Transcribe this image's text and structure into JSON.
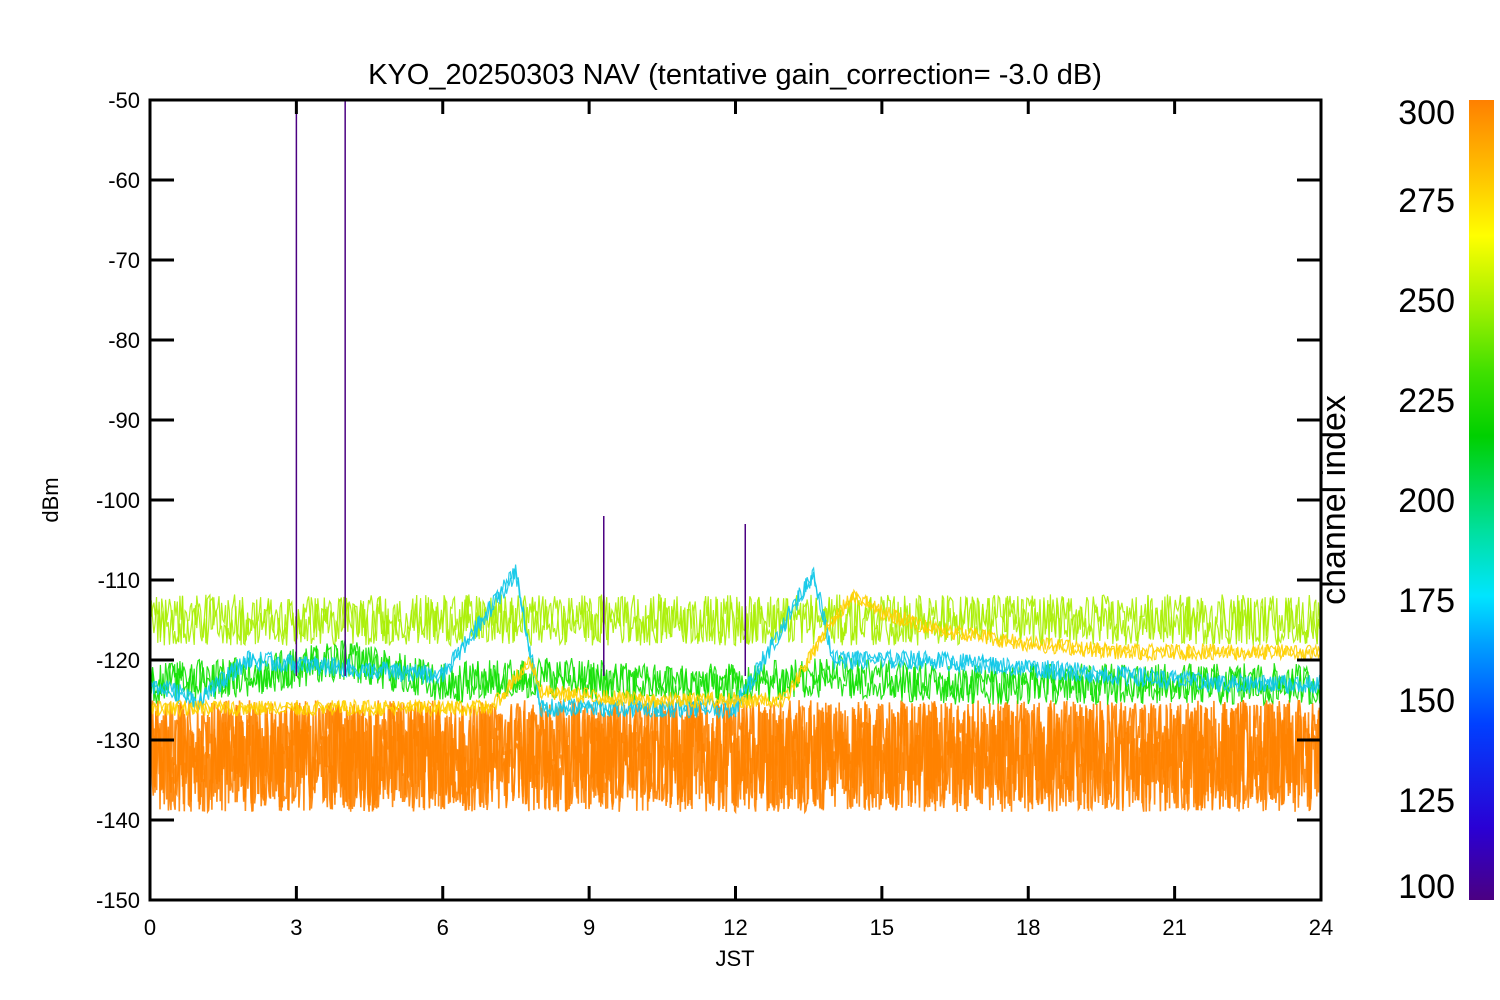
{
  "chart_data": {
    "type": "line",
    "title": "KYO_20250303 NAV (tentative gain_correction= -3.0 dB)",
    "xlabel": "JST",
    "ylabel": "dBm",
    "xlim": [
      0,
      24
    ],
    "ylim": [
      -150,
      -50
    ],
    "xticks": [
      0,
      3,
      6,
      9,
      12,
      15,
      18,
      21,
      24
    ],
    "yticks": [
      -50,
      -60,
      -70,
      -80,
      -90,
      -100,
      -110,
      -120,
      -130,
      -140,
      -150
    ],
    "grid": false,
    "colorbar": {
      "label": "channel index",
      "range": [
        100,
        300
      ],
      "ticks": [
        300,
        275,
        250,
        225,
        200,
        175,
        150,
        125,
        100
      ],
      "colormap": [
        "#4b0082",
        "#2a00d4",
        "#0040ff",
        "#00a0ff",
        "#00e5ff",
        "#00e0a0",
        "#00d000",
        "#40e000",
        "#a0f000",
        "#ffff00",
        "#ffc000",
        "#ff8000"
      ]
    },
    "series": [
      {
        "band": "orange",
        "channel": 295,
        "color": "#ff8200",
        "x": [
          0,
          2,
          4,
          6,
          8,
          10,
          12,
          14,
          16,
          18,
          20,
          22,
          24
        ],
        "y": [
          -132,
          -132,
          -132,
          -132,
          -132,
          -132,
          -132,
          -132,
          -132,
          -132,
          -132,
          -132,
          -132
        ]
      },
      {
        "band": "yellow-green",
        "channel": 262,
        "color": "#a8f000",
        "x": [
          0,
          2,
          4,
          6,
          8,
          10,
          12,
          14,
          16,
          18,
          20,
          22,
          24
        ],
        "y": [
          -115,
          -115,
          -115,
          -115,
          -115,
          -115,
          -115,
          -115,
          -115,
          -115,
          -115,
          -115,
          -115
        ]
      },
      {
        "band": "green",
        "channel": 230,
        "color": "#10e000",
        "x": [
          0,
          2,
          4,
          6,
          8,
          10,
          12,
          14,
          16,
          18,
          20,
          22,
          24
        ],
        "y": [
          -123,
          -122,
          -120,
          -123,
          -122,
          -123,
          -123,
          -122,
          -123,
          -123,
          -123,
          -123,
          -123
        ]
      },
      {
        "band": "cyan",
        "channel": 175,
        "color": "#10c8e8",
        "x": [
          0,
          1,
          2,
          4,
          6,
          7.5,
          8,
          10,
          12,
          13.6,
          14,
          16,
          18,
          20,
          22,
          24
        ],
        "y": [
          -123,
          -125,
          -120,
          -121,
          -122,
          -109,
          -126,
          -126,
          -126,
          -109,
          -120,
          -120,
          -121,
          -122,
          -123,
          -123
        ]
      },
      {
        "band": "gold",
        "channel": 280,
        "color": "#ffd000",
        "x": [
          0,
          2,
          4,
          6,
          7,
          7.8,
          8,
          10,
          12,
          13,
          14,
          14.4,
          15,
          16,
          18,
          20,
          22,
          24
        ],
        "y": [
          -126,
          -126,
          -126,
          -126,
          -126,
          -120,
          -124,
          -125,
          -125,
          -125,
          -115,
          -112,
          -114,
          -116,
          -118,
          -119,
          -119,
          -119
        ]
      },
      {
        "band": "spikes",
        "channel": 105,
        "color": "#4b0082",
        "x": [
          3,
          4,
          9.3,
          12.2
        ],
        "y": [
          -50,
          -50,
          -102,
          -103
        ]
      }
    ]
  }
}
